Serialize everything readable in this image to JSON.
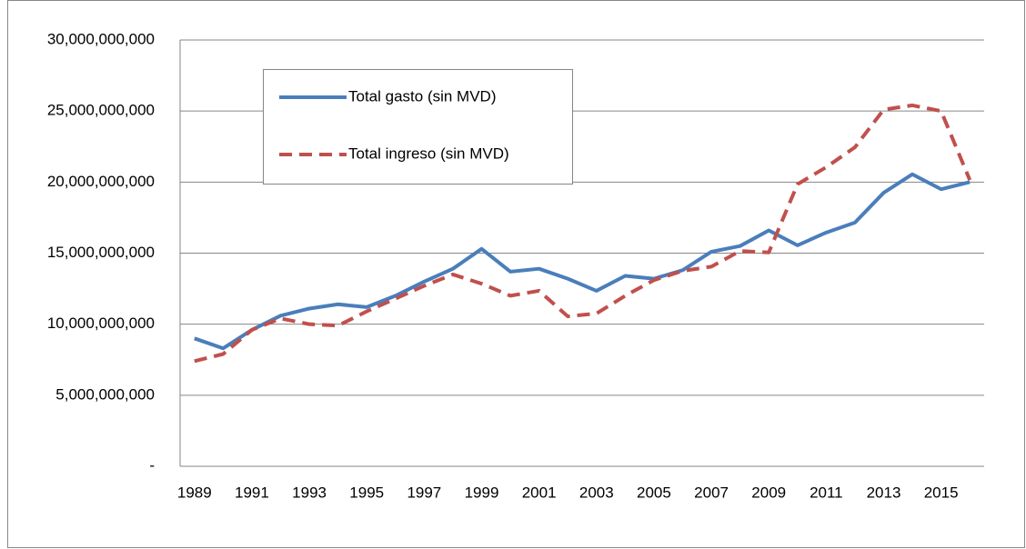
{
  "chart_data": {
    "type": "line",
    "categories": [
      "1989",
      null,
      "1991",
      null,
      "1993",
      null,
      "1995",
      null,
      "1997",
      null,
      "1999",
      null,
      "2001",
      null,
      "2003",
      null,
      "2005",
      null,
      "2007",
      null,
      "2009",
      null,
      "2011",
      null,
      "2013",
      null,
      "2015",
      null
    ],
    "series": [
      {
        "name": "Total gasto (sin MVD)",
        "color": "#4a7ebb",
        "dash": "solid",
        "values": [
          9000000000,
          8300000000,
          9600000000,
          10600000000,
          11100000000,
          11400000000,
          11200000000,
          12000000000,
          13000000000,
          13900000000,
          15300000000,
          13700000000,
          13900000000,
          13200000000,
          12350000000,
          13400000000,
          13200000000,
          13800000000,
          15100000000,
          15500000000,
          16600000000,
          15550000000,
          16450000000,
          17150000000,
          19250000000,
          20550000000,
          19500000000,
          20000000000
        ]
      },
      {
        "name": "Total ingreso (sin MVD)",
        "color": "#c0504d",
        "dash": "dashed",
        "values": [
          7400000000,
          7900000000,
          9600000000,
          10400000000,
          10000000000,
          9900000000,
          10900000000,
          11800000000,
          12700000000,
          13500000000,
          12850000000,
          12000000000,
          12350000000,
          10550000000,
          10750000000,
          12000000000,
          13100000000,
          13750000000,
          14050000000,
          15150000000,
          15050000000,
          19850000000,
          21050000000,
          22450000000,
          25100000000,
          25400000000,
          25000000000,
          20150000000
        ]
      }
    ],
    "ylim": [
      0,
      30000000000
    ],
    "yticks": [
      {
        "value": 0,
        "label": "-"
      },
      {
        "value": 5000000000,
        "label": "5,000,000,000"
      },
      {
        "value": 10000000000,
        "label": "10,000,000,000"
      },
      {
        "value": 15000000000,
        "label": "15,000,000,000"
      },
      {
        "value": 20000000000,
        "label": "20,000,000,000"
      },
      {
        "value": 25000000000,
        "label": "25,000,000,000"
      },
      {
        "value": 30000000000,
        "label": "30,000,000,000"
      }
    ],
    "grid": true,
    "legend": "upper left"
  }
}
